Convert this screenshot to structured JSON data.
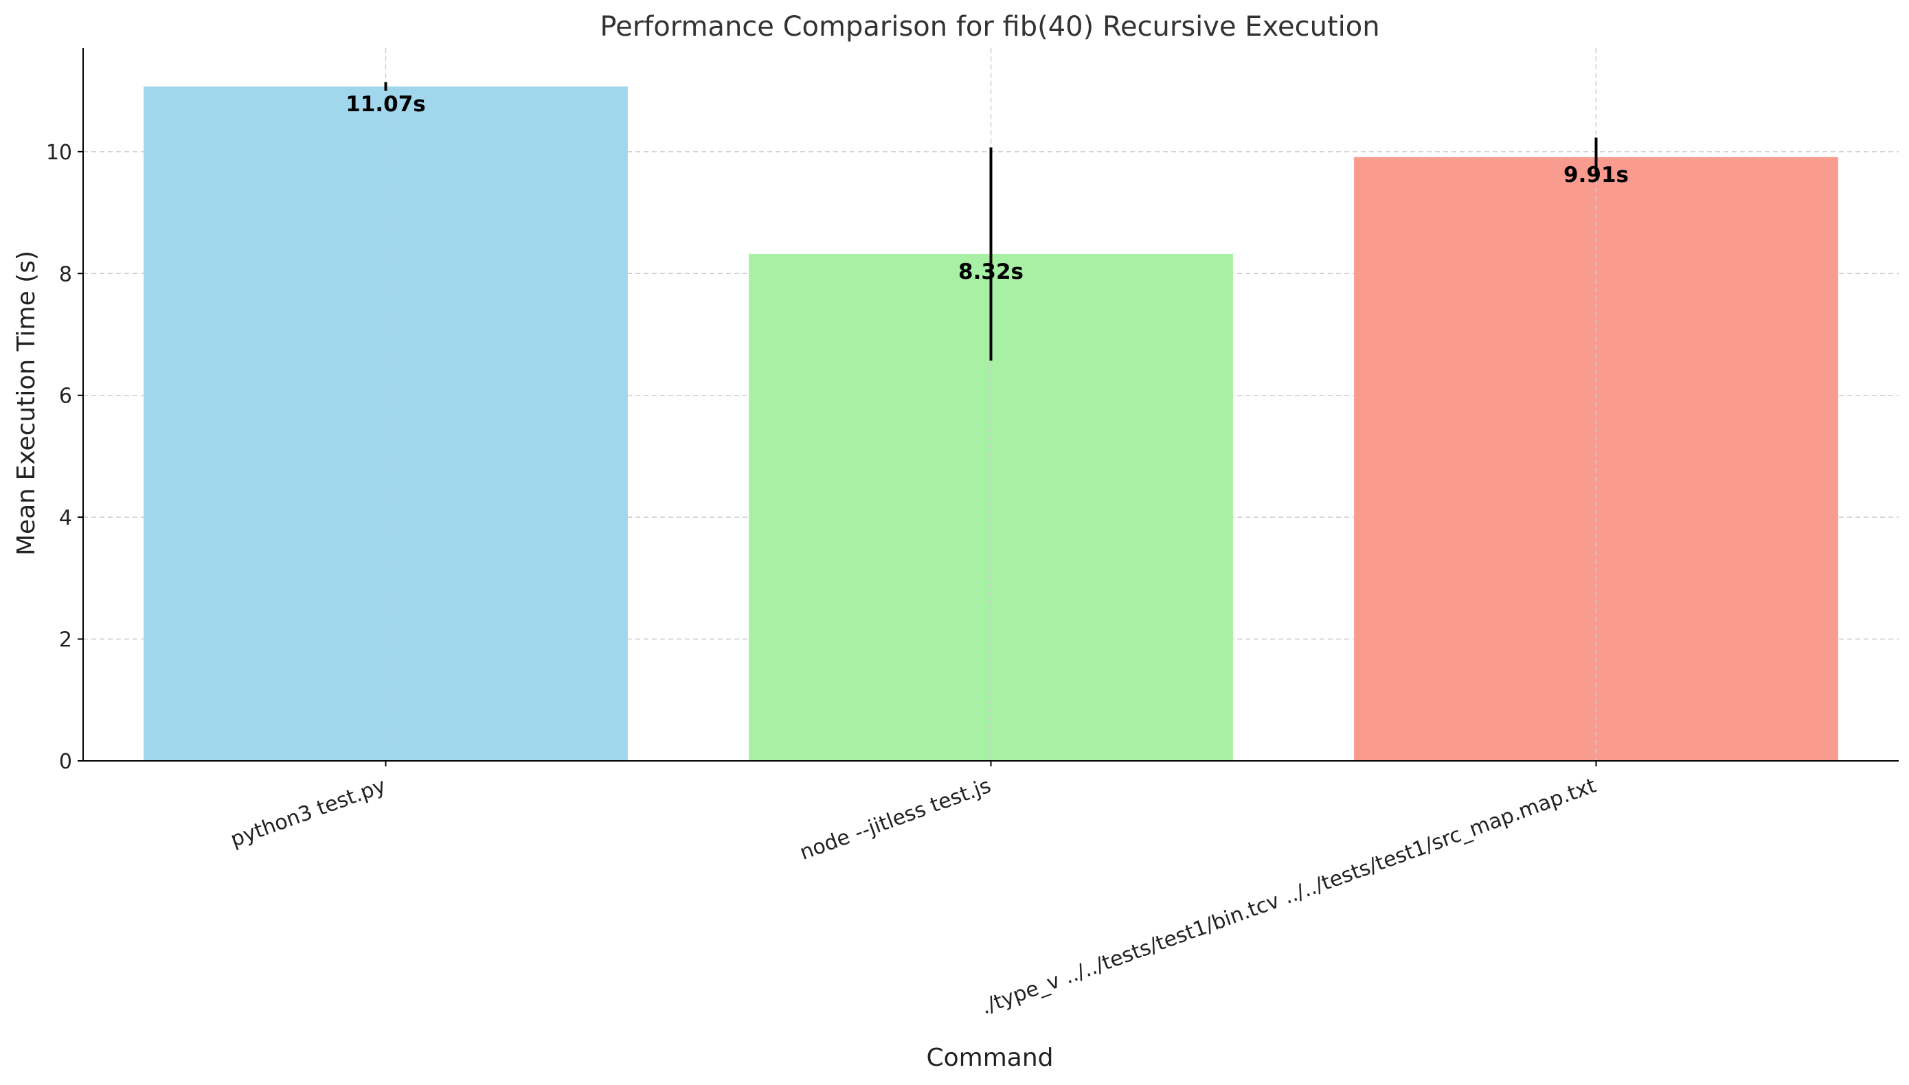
{
  "chart_data": {
    "type": "bar",
    "title": "Performance Comparison for fib(40) Recursive Execution",
    "xlabel": "Command",
    "ylabel": "Mean Execution Time (s)",
    "categories": [
      "python3 test.py",
      "node --jitless test.js",
      "./type_v ../../tests/test1/bin.tcv ../../tests/test1/src_map.map.txt"
    ],
    "values": [
      11.07,
      8.32,
      9.91
    ],
    "error": [
      0.07,
      1.75,
      0.32
    ],
    "value_labels": [
      "11.07s",
      "8.32s",
      "9.91s"
    ],
    "colors": [
      "#a0d7ed",
      "#a8f0a4",
      "#f99b8e"
    ],
    "ylim": [
      0,
      11.7
    ],
    "yticks": [
      0,
      2,
      4,
      6,
      8,
      10
    ],
    "ytick_labels": [
      "0",
      "2",
      "4",
      "6",
      "8",
      "10"
    ],
    "grid": true
  }
}
